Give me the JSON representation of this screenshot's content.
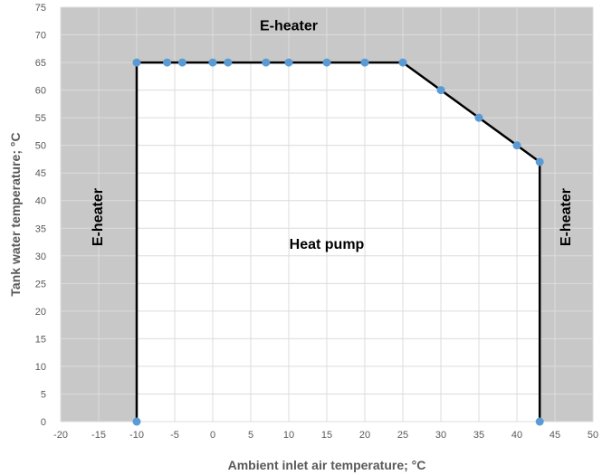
{
  "chart_data": {
    "type": "line",
    "title": "",
    "xlabel": "Ambient inlet air temperature; °C",
    "ylabel": "Tank water temperature; °C",
    "xlim": [
      -20,
      50
    ],
    "ylim": [
      0,
      75
    ],
    "x_ticks": [
      -20,
      -15,
      -10,
      -5,
      0,
      5,
      10,
      15,
      20,
      25,
      30,
      35,
      40,
      45,
      50
    ],
    "y_ticks": [
      0,
      5,
      10,
      15,
      20,
      25,
      30,
      35,
      40,
      45,
      50,
      55,
      60,
      65,
      70,
      75
    ],
    "grid": true,
    "legend": "none",
    "series": [
      {
        "points": [
          {
            "x": -10,
            "y": 0
          },
          {
            "x": -10,
            "y": 65
          },
          {
            "x": -6,
            "y": 65
          },
          {
            "x": -4,
            "y": 65
          },
          {
            "x": 0,
            "y": 65
          },
          {
            "x": 2,
            "y": 65
          },
          {
            "x": 7,
            "y": 65
          },
          {
            "x": 10,
            "y": 65
          },
          {
            "x": 15,
            "y": 65
          },
          {
            "x": 20,
            "y": 65
          },
          {
            "x": 25,
            "y": 65
          },
          {
            "x": 30,
            "y": 60
          },
          {
            "x": 35,
            "y": 55
          },
          {
            "x": 40,
            "y": 50
          },
          {
            "x": 43,
            "y": 47
          },
          {
            "x": 43,
            "y": 0
          }
        ]
      }
    ],
    "annotations": [
      {
        "text": "E-heater",
        "x": 10,
        "y": 71.5,
        "rotation": 0
      },
      {
        "text": "E-heater",
        "x": -15,
        "y": 37,
        "rotation": -90
      },
      {
        "text": "E-heater",
        "x": 46.5,
        "y": 37,
        "rotation": -90
      },
      {
        "text": "Heat pump",
        "x": 15,
        "y": 32,
        "rotation": 0
      }
    ],
    "colors": {
      "outside_region": "#c8c8c8",
      "inside_region": "#ffffff",
      "grid": "#dcdcdc",
      "line": "#000000",
      "marker": "#5b9bd5"
    }
  }
}
